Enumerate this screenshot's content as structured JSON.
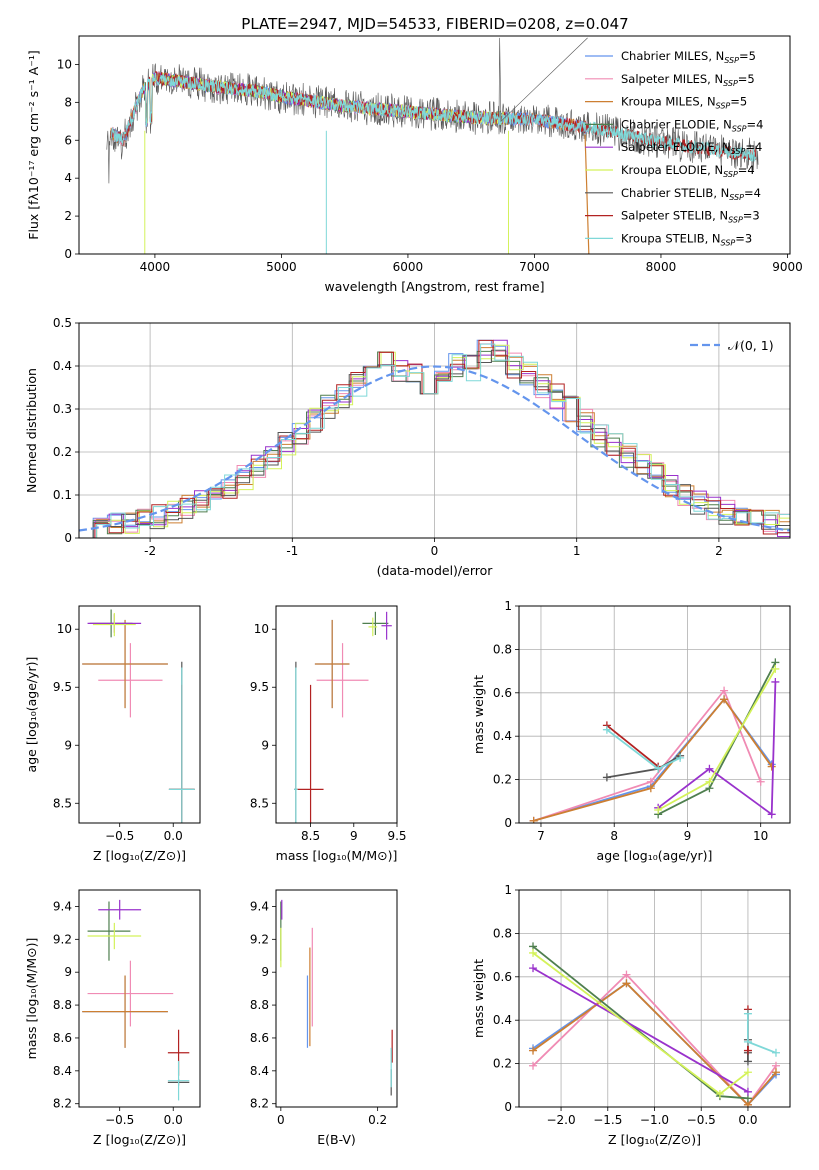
{
  "figure_title": "PLATE=2947, MJD=54533, FIBERID=0208, z=0.047",
  "colors": {
    "Chabrier MILES": "#6495ed",
    "Salpeter MILES": "#f08bb4",
    "Kroupa MILES": "#cd7f32",
    "Chabrier ELODIE": "#4f7f4f",
    "Salpeter ELODIE": "#9932cc",
    "Kroupa ELODIE": "#d4f25a",
    "Chabrier STELIB": "#555555",
    "Salpeter STELIB": "#b22222",
    "Kroupa STELIB": "#7fd8d8",
    "normal_curve": "#6495ed",
    "grid": "#b0b0b0"
  },
  "chart_data": [
    {
      "type": "line",
      "panel": "spectrum",
      "xlabel": "wavelength [Angstrom, rest frame]",
      "ylabel": "Flux [fλ10⁻¹⁷ erg cm⁻² s⁻¹ A⁻¹]",
      "xlim": [
        3400,
        9020
      ],
      "ylim": [
        0,
        11.5
      ],
      "xticks": [
        4000,
        5000,
        6000,
        7000,
        8000,
        9000
      ],
      "yticks": [
        0,
        2,
        4,
        6,
        8,
        10
      ],
      "grid": false,
      "legend_position": "top-right",
      "legend": [
        {
          "name": "Chabrier MILES, N",
          "sub": "SSP",
          "eq": "=5"
        },
        {
          "name": "Salpeter MILES, N",
          "sub": "SSP",
          "eq": "=5"
        },
        {
          "name": "Kroupa MILES, N",
          "sub": "SSP",
          "eq": "=5"
        },
        {
          "name": "Chabrier ELODIE, N",
          "sub": "SSP",
          "eq": "=4"
        },
        {
          "name": "Salpeter ELODIE, N",
          "sub": "SSP",
          "eq": "=4"
        },
        {
          "name": "Kroupa ELODIE, N",
          "sub": "SSP",
          "eq": "=4"
        },
        {
          "name": "Chabrier STELIB, N",
          "sub": "SSP",
          "eq": "=4"
        },
        {
          "name": "Salpeter STELIB, N",
          "sub": "SSP",
          "eq": "=3"
        },
        {
          "name": "Kroupa STELIB, N",
          "sub": "SSP",
          "eq": "=3"
        }
      ],
      "continuum": {
        "x": [
          3650,
          3750,
          3900,
          4000,
          4200,
          4500,
          4800,
          5000,
          5500,
          6000,
          6500,
          7000,
          7500,
          8000,
          8500,
          8750
        ],
        "y": [
          6.4,
          6.0,
          8.6,
          9.3,
          9.1,
          8.8,
          8.6,
          8.3,
          7.8,
          7.5,
          7.2,
          7.1,
          6.6,
          5.9,
          5.4,
          5.2
        ]
      },
      "series_extent": [
        {
          "name": "Chabrier MILES",
          "x_range": [
            3650,
            7420
          ]
        },
        {
          "name": "Salpeter MILES",
          "x_range": [
            3650,
            7420
          ]
        },
        {
          "name": "Kroupa MILES",
          "x_range": [
            3650,
            7420
          ]
        },
        {
          "name": "Chabrier ELODIE",
          "x_range": [
            3900,
            6800
          ]
        },
        {
          "name": "Salpeter ELODIE",
          "x_range": [
            3900,
            6800
          ]
        },
        {
          "name": "Kroupa ELODIE",
          "x_range": [
            3900,
            6800
          ]
        },
        {
          "name": "Chabrier STELIB",
          "x_range": [
            3620,
            8770
          ]
        },
        {
          "name": "Salpeter STELIB",
          "x_range": [
            3650,
            8750
          ]
        },
        {
          "name": "Kroupa STELIB",
          "x_range": [
            3650,
            8750
          ]
        }
      ]
    },
    {
      "type": "bar",
      "panel": "residuals",
      "xlabel": "(data-model)/error",
      "ylabel": "Normed distribution",
      "xlim": [
        -2.5,
        2.5
      ],
      "ylim": [
        0,
        0.5
      ],
      "xticks": [
        -2,
        -1,
        0,
        1,
        2
      ],
      "yticks": [
        0.0,
        0.1,
        0.2,
        0.3,
        0.4,
        0.5
      ],
      "grid": true,
      "legend_position": "top-right",
      "legend": [
        "𝒩(0, 1)"
      ],
      "bin_edges": [
        -2.5,
        -2.4,
        -2.3,
        -2.2,
        -2.1,
        -2.0,
        -1.9,
        -1.8,
        -1.7,
        -1.6,
        -1.5,
        -1.4,
        -1.3,
        -1.2,
        -1.1,
        -1.0,
        -0.9,
        -0.8,
        -0.7,
        -0.6,
        -0.5,
        -0.4,
        -0.3,
        -0.2,
        -0.1,
        0.0,
        0.1,
        0.2,
        0.3,
        0.4,
        0.5,
        0.6,
        0.7,
        0.8,
        0.9,
        1.0,
        1.1,
        1.2,
        1.3,
        1.4,
        1.5,
        1.6,
        1.7,
        1.8,
        1.9,
        2.0,
        2.1,
        2.2,
        2.3,
        2.4,
        2.5
      ],
      "histogram_mean": [
        0.025,
        0.03,
        0.035,
        0.04,
        0.045,
        0.05,
        0.06,
        0.07,
        0.085,
        0.1,
        0.12,
        0.14,
        0.165,
        0.19,
        0.22,
        0.245,
        0.275,
        0.305,
        0.33,
        0.355,
        0.385,
        0.41,
        0.39,
        0.38,
        0.36,
        0.39,
        0.4,
        0.395,
        0.43,
        0.44,
        0.4,
        0.38,
        0.35,
        0.33,
        0.3,
        0.27,
        0.24,
        0.22,
        0.19,
        0.17,
        0.145,
        0.12,
        0.1,
        0.085,
        0.07,
        0.06,
        0.05,
        0.04,
        0.035,
        0.03
      ],
      "normal_curve": {
        "name": "𝒩(0, 1)",
        "mean": 0,
        "sigma": 1
      }
    },
    {
      "type": "scatter",
      "panel": "age_vs_Z",
      "xlabel": "Z [log₁₀(Z/Z⊙)]",
      "ylabel": "age  [log₁₀(age/yr)]",
      "xlim": [
        -0.88,
        0.25
      ],
      "ylim": [
        8.33,
        10.2
      ],
      "xticks": [
        -0.5,
        0.0
      ],
      "xticklabels": [
        "−0.5",
        "0.0"
      ],
      "yticks": [
        8.5,
        9.0,
        9.5,
        10.0
      ],
      "grid": false,
      "points": [
        {
          "series": "Chabrier MILES",
          "x": -0.45,
          "xerr": 0.4,
          "y": 9.7,
          "yerr": 0.38
        },
        {
          "series": "Salpeter MILES",
          "x": -0.4,
          "xerr": 0.3,
          "y": 9.56,
          "yerr": 0.32
        },
        {
          "series": "Kroupa MILES",
          "x": -0.45,
          "xerr": 0.4,
          "y": 9.7,
          "yerr": 0.38
        },
        {
          "series": "Chabrier ELODIE",
          "x": -0.58,
          "xerr": 0.2,
          "y": 10.05,
          "yerr": 0.12
        },
        {
          "series": "Salpeter ELODIE",
          "x": -0.55,
          "xerr": 0.25,
          "y": 10.05,
          "yerr": 0.08
        },
        {
          "series": "Kroupa ELODIE",
          "x": -0.55,
          "xerr": 0.2,
          "y": 10.04,
          "yerr": 0.1
        },
        {
          "series": "Chabrier STELIB",
          "x": 0.08,
          "xerr": 0.12,
          "y": 8.62,
          "yerr": 1.1
        },
        {
          "series": "Salpeter STELIB",
          "x": 0.08,
          "xerr": 0.12,
          "y": 8.62,
          "yerr": 0.9
        },
        {
          "series": "Kroupa STELIB",
          "x": 0.08,
          "xerr": 0.12,
          "y": 8.62,
          "yerr": 1.05
        }
      ]
    },
    {
      "type": "scatter",
      "panel": "age_vs_mass",
      "xlabel": "mass [log₁₀(M/M⊙)]",
      "ylabel": "",
      "xlim": [
        8.1,
        9.5
      ],
      "ylim": [
        8.33,
        10.2
      ],
      "xticks": [
        8.5,
        9.0,
        9.5
      ],
      "yticks": [
        8.5,
        9.0,
        9.5,
        10.0
      ],
      "grid": false,
      "points": [
        {
          "series": "Chabrier MILES",
          "x": 8.75,
          "xerr": 0.2,
          "y": 9.7,
          "yerr": 0.38
        },
        {
          "series": "Salpeter MILES",
          "x": 8.87,
          "xerr": 0.3,
          "y": 9.56,
          "yerr": 0.32
        },
        {
          "series": "Kroupa MILES",
          "x": 8.75,
          "xerr": 0.2,
          "y": 9.7,
          "yerr": 0.38
        },
        {
          "series": "Chabrier ELODIE",
          "x": 9.25,
          "xerr": 0.15,
          "y": 10.05,
          "yerr": 0.1
        },
        {
          "series": "Salpeter ELODIE",
          "x": 9.38,
          "xerr": 0.06,
          "y": 10.03,
          "yerr": 0.12
        },
        {
          "series": "Kroupa ELODIE",
          "x": 9.22,
          "xerr": 0.05,
          "y": 10.02,
          "yerr": 0.08
        },
        {
          "series": "Chabrier STELIB",
          "x": 8.33,
          "xerr": 0.02,
          "y": 8.62,
          "yerr": 1.1
        },
        {
          "series": "Salpeter STELIB",
          "x": 8.5,
          "xerr": 0.15,
          "y": 8.62,
          "yerr": 0.9
        },
        {
          "series": "Kroupa STELIB",
          "x": 8.33,
          "xerr": 0.02,
          "y": 8.62,
          "yerr": 1.05
        }
      ]
    },
    {
      "type": "line",
      "panel": "mass_weight_vs_age",
      "xlabel": "age  [log₁₀(age/yr)]",
      "ylabel": "mass weight",
      "xlim": [
        6.7,
        10.4
      ],
      "ylim": [
        0,
        1.0
      ],
      "xticks": [
        7,
        8,
        9,
        10
      ],
      "yticks": [
        0.0,
        0.2,
        0.4,
        0.6,
        0.8,
        1.0
      ],
      "grid": true,
      "series": [
        {
          "name": "Chabrier MILES",
          "x": [
            6.9,
            8.5,
            9.5,
            10.15
          ],
          "y": [
            0.01,
            0.17,
            0.57,
            0.27
          ]
        },
        {
          "name": "Salpeter MILES",
          "x": [
            6.9,
            8.5,
            9.5,
            10.0
          ],
          "y": [
            0.01,
            0.19,
            0.61,
            0.19
          ]
        },
        {
          "name": "Kroupa MILES",
          "x": [
            6.9,
            8.5,
            9.5,
            10.15
          ],
          "y": [
            0.01,
            0.16,
            0.57,
            0.26
          ]
        },
        {
          "name": "Chabrier ELODIE",
          "x": [
            8.6,
            9.3,
            10.2
          ],
          "y": [
            0.04,
            0.16,
            0.74
          ]
        },
        {
          "name": "Salpeter ELODIE",
          "x": [
            8.6,
            9.3,
            10.15,
            10.2
          ],
          "y": [
            0.07,
            0.25,
            0.04,
            0.65
          ]
        },
        {
          "name": "Kroupa ELODIE",
          "x": [
            8.6,
            9.3,
            10.2
          ],
          "y": [
            0.06,
            0.19,
            0.71
          ]
        },
        {
          "name": "Chabrier STELIB",
          "x": [
            7.9,
            8.6,
            8.9
          ],
          "y": [
            0.21,
            0.25,
            0.31
          ]
        },
        {
          "name": "Salpeter STELIB",
          "x": [
            7.9,
            8.6
          ],
          "y": [
            0.45,
            0.26
          ]
        },
        {
          "name": "Kroupa STELIB",
          "x": [
            7.9,
            8.6,
            8.9
          ],
          "y": [
            0.43,
            0.25,
            0.3
          ]
        }
      ]
    },
    {
      "type": "scatter",
      "panel": "mass_vs_Z",
      "xlabel": "Z [log₁₀(Z/Z⊙)]",
      "ylabel": "mass [log₁₀(M/M⊙)]",
      "xlim": [
        -0.88,
        0.25
      ],
      "ylim": [
        8.18,
        9.5
      ],
      "xticks": [
        -0.5,
        0.0
      ],
      "xticklabels": [
        "−0.5",
        "0.0"
      ],
      "yticks": [
        8.2,
        8.4,
        8.6,
        8.8,
        9.0,
        9.2,
        9.4
      ],
      "grid": false,
      "points": [
        {
          "series": "Chabrier MILES",
          "x": -0.45,
          "xerr": 0.4,
          "y": 8.76,
          "yerr": 0.22
        },
        {
          "series": "Salpeter MILES",
          "x": -0.4,
          "xerr": 0.4,
          "y": 8.87,
          "yerr": 0.2
        },
        {
          "series": "Kroupa MILES",
          "x": -0.45,
          "xerr": 0.4,
          "y": 8.76,
          "yerr": 0.22
        },
        {
          "series": "Chabrier ELODIE",
          "x": -0.6,
          "xerr": 0.2,
          "y": 9.25,
          "yerr": 0.18
        },
        {
          "series": "Salpeter ELODIE",
          "x": -0.5,
          "xerr": 0.2,
          "y": 9.38,
          "yerr": 0.06
        },
        {
          "series": "Kroupa ELODIE",
          "x": -0.55,
          "xerr": 0.25,
          "y": 9.22,
          "yerr": 0.08
        },
        {
          "series": "Chabrier STELIB",
          "x": 0.05,
          "xerr": 0.1,
          "y": 8.33,
          "yerr": 0.02
        },
        {
          "series": "Salpeter STELIB",
          "x": 0.05,
          "xerr": 0.1,
          "y": 8.51,
          "yerr": 0.14
        },
        {
          "series": "Kroupa STELIB",
          "x": 0.05,
          "xerr": 0.1,
          "y": 8.34,
          "yerr": 0.12
        }
      ]
    },
    {
      "type": "scatter",
      "panel": "mass_vs_ebv",
      "xlabel": "E(B-V)",
      "ylabel": "",
      "xlim": [
        -0.01,
        0.24
      ],
      "ylim": [
        8.18,
        9.5
      ],
      "xticks": [
        0.0,
        0.2
      ],
      "yticks": [
        8.2,
        8.4,
        8.6,
        8.8,
        9.0,
        9.2,
        9.4
      ],
      "grid": false,
      "points": [
        {
          "series": "Chabrier MILES",
          "x": 0.055,
          "y": 8.76,
          "yerr": 0.22
        },
        {
          "series": "Salpeter MILES",
          "x": 0.065,
          "y": 8.97,
          "yerr": 0.3
        },
        {
          "series": "Kroupa MILES",
          "x": 0.06,
          "y": 8.85,
          "yerr": 0.3
        },
        {
          "series": "Chabrier ELODIE",
          "x": 0.0,
          "y": 9.25,
          "yerr": 0.18
        },
        {
          "series": "Salpeter ELODIE",
          "x": 0.002,
          "y": 9.38,
          "yerr": 0.06
        },
        {
          "series": "Kroupa ELODIE",
          "x": 0.0,
          "y": 9.15,
          "yerr": 0.12
        },
        {
          "series": "Chabrier STELIB",
          "x": 0.228,
          "y": 8.33,
          "yerr": 0.08
        },
        {
          "series": "Salpeter STELIB",
          "x": 0.23,
          "y": 8.55,
          "yerr": 0.1
        },
        {
          "series": "Kroupa STELIB",
          "x": 0.228,
          "y": 8.42,
          "yerr": 0.12
        }
      ]
    },
    {
      "type": "line",
      "panel": "mass_weight_vs_Z",
      "xlabel": "Z [log₁₀(Z/Z⊙)]",
      "ylabel": "mass weight",
      "xlim": [
        -2.45,
        0.45
      ],
      "ylim": [
        0,
        1.0
      ],
      "xticks": [
        -2.0,
        -1.5,
        -1.0,
        -0.5,
        0.0
      ],
      "xticklabels": [
        "−2.0",
        "−1.5",
        "−1.0",
        "−0.5",
        "0.0"
      ],
      "yticks": [
        0.0,
        0.2,
        0.4,
        0.6,
        0.8,
        1.0
      ],
      "grid": true,
      "series": [
        {
          "name": "Chabrier MILES",
          "x": [
            -2.3,
            -1.3,
            0.0,
            0.3
          ],
          "y": [
            0.27,
            0.57,
            0.01,
            0.15
          ]
        },
        {
          "name": "Salpeter MILES",
          "x": [
            -2.3,
            -1.3,
            0.0,
            0.3
          ],
          "y": [
            0.19,
            0.61,
            0.01,
            0.19
          ]
        },
        {
          "name": "Kroupa MILES",
          "x": [
            -2.3,
            -1.3,
            0.0,
            0.3
          ],
          "y": [
            0.26,
            0.57,
            0.01,
            0.16
          ]
        },
        {
          "name": "Chabrier ELODIE",
          "x": [
            -2.3,
            -0.3,
            0.0
          ],
          "y": [
            0.74,
            0.05,
            0.04
          ]
        },
        {
          "name": "Salpeter ELODIE",
          "x": [
            -2.3,
            0.0
          ],
          "y": [
            0.64,
            0.07
          ]
        },
        {
          "name": "Kroupa ELODIE",
          "x": [
            -2.3,
            -0.3,
            0.0
          ],
          "y": [
            0.71,
            0.06,
            0.16
          ]
        },
        {
          "name": "Chabrier STELIB",
          "x": [
            0.0,
            0.0,
            0.0
          ],
          "y": [
            0.21,
            0.25,
            0.31
          ]
        },
        {
          "name": "Salpeter STELIB",
          "x": [
            0.0,
            0.0
          ],
          "y": [
            0.45,
            0.26
          ]
        },
        {
          "name": "Kroupa STELIB",
          "x": [
            0.0,
            0.0,
            0.3
          ],
          "y": [
            0.43,
            0.3,
            0.25
          ]
        }
      ]
    }
  ]
}
